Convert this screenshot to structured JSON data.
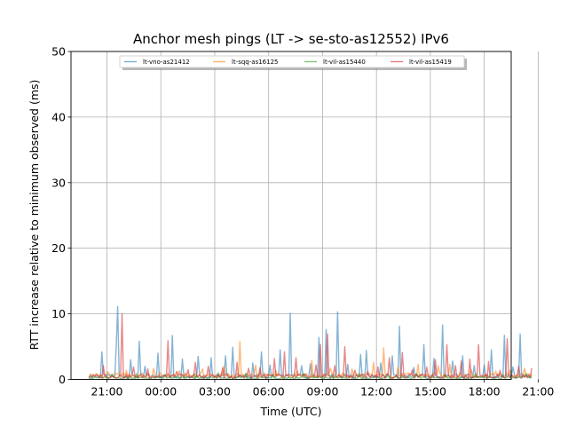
{
  "chart_data": {
    "type": "line",
    "title": "Anchor mesh pings (LT -> se-sto-as12552) IPv6",
    "xlabel": "Time (UTC)",
    "ylabel": "RTT increase relative to minimum observed (ms)",
    "xlim_hours": [
      -2.0,
      22.5
    ],
    "ylim": [
      0,
      50
    ],
    "x_ticks": [
      {
        "value": 21,
        "label": "21:00"
      },
      {
        "value": 24,
        "label": "00:00"
      },
      {
        "value": 27,
        "label": "03:00"
      },
      {
        "value": 30,
        "label": "06:00"
      },
      {
        "value": 33,
        "label": "09:00"
      },
      {
        "value": 36,
        "label": "12:00"
      },
      {
        "value": 39,
        "label": "15:00"
      },
      {
        "value": 42,
        "label": "18:00"
      },
      {
        "value": 45,
        "label": "21:00"
      }
    ],
    "y_ticks": [
      0,
      10,
      20,
      30,
      40,
      50
    ],
    "grid": true,
    "legend_position": "top-center",
    "series": [
      {
        "name": "lt-vno-as21412",
        "color": "#1f77b4",
        "peaks": [
          [
            20.7,
            4.2
          ],
          [
            21.5,
            5.2
          ],
          [
            21.6,
            11.1
          ],
          [
            22.3,
            3.0
          ],
          [
            22.8,
            5.8
          ],
          [
            23.1,
            2.0
          ],
          [
            23.8,
            4.0
          ],
          [
            24.6,
            6.7
          ],
          [
            25.2,
            3.1
          ],
          [
            26.1,
            3.5
          ],
          [
            26.8,
            3.3
          ],
          [
            27.6,
            3.6
          ],
          [
            28.0,
            4.9
          ],
          [
            29.1,
            2.5
          ],
          [
            29.6,
            4.2
          ],
          [
            30.1,
            2.2
          ],
          [
            30.6,
            4.5
          ],
          [
            31.2,
            10.1
          ],
          [
            31.8,
            2.1
          ],
          [
            32.3,
            2.4
          ],
          [
            32.8,
            6.4
          ],
          [
            33.2,
            7.6
          ],
          [
            33.8,
            10.3
          ],
          [
            34.4,
            2.3
          ],
          [
            35.1,
            3.8
          ],
          [
            35.4,
            4.4
          ],
          [
            36.2,
            2.5
          ],
          [
            36.9,
            3.6
          ],
          [
            37.3,
            8.1
          ],
          [
            38.1,
            1.8
          ],
          [
            38.6,
            5.3
          ],
          [
            39.2,
            3.2
          ],
          [
            39.7,
            8.3
          ],
          [
            40.2,
            2.8
          ],
          [
            40.8,
            3.6
          ],
          [
            41.4,
            2.1
          ],
          [
            42.0,
            2.2
          ],
          [
            42.4,
            4.5
          ],
          [
            43.1,
            6.7
          ],
          [
            43.6,
            1.9
          ],
          [
            44.0,
            6.9
          ]
        ],
        "baseline": 0.4
      },
      {
        "name": "lt-sqq-as16125",
        "color": "#ff7f0e",
        "peaks": [
          [
            21.0,
            1.2
          ],
          [
            22.1,
            1.4
          ],
          [
            23.6,
            1.7
          ],
          [
            25.0,
            1.3
          ],
          [
            26.3,
            1.6
          ],
          [
            27.5,
            2.0
          ],
          [
            28.4,
            5.8
          ],
          [
            29.3,
            2.2
          ],
          [
            30.4,
            1.4
          ],
          [
            31.6,
            1.3
          ],
          [
            32.4,
            2.9
          ],
          [
            33.4,
            1.7
          ],
          [
            34.6,
            1.6
          ],
          [
            35.8,
            2.6
          ],
          [
            36.4,
            4.8
          ],
          [
            37.2,
            1.9
          ],
          [
            38.3,
            2.3
          ],
          [
            39.4,
            2.1
          ],
          [
            40.1,
            2.3
          ],
          [
            41.3,
            1.5
          ],
          [
            42.6,
            1.3
          ],
          [
            43.4,
            1.4
          ],
          [
            44.2,
            1.7
          ]
        ],
        "baseline": 0.5
      },
      {
        "name": "lt-vil-as15440",
        "color": "#2ca02c",
        "peaks": [
          [
            21.3,
            0.8
          ],
          [
            22.6,
            0.9
          ],
          [
            24.2,
            0.8
          ],
          [
            25.8,
            0.9
          ],
          [
            27.2,
            1.0
          ],
          [
            28.7,
            0.9
          ],
          [
            30.2,
            0.8
          ],
          [
            31.9,
            0.9
          ],
          [
            33.5,
            0.8
          ],
          [
            35.0,
            0.9
          ],
          [
            36.6,
            0.8
          ],
          [
            38.2,
            0.9
          ],
          [
            39.8,
            0.8
          ],
          [
            41.5,
            0.9
          ],
          [
            43.0,
            0.8
          ],
          [
            44.3,
            0.9
          ]
        ],
        "baseline": 0.2
      },
      {
        "name": "lt-vil-as15419",
        "color": "#d62728",
        "peaks": [
          [
            20.8,
            2.1
          ],
          [
            21.8,
            10.0
          ],
          [
            22.5,
            1.9
          ],
          [
            23.3,
            1.6
          ],
          [
            24.4,
            5.9
          ],
          [
            24.9,
            1.2
          ],
          [
            25.5,
            1.5
          ],
          [
            25.9,
            2.6
          ],
          [
            26.6,
            2.0
          ],
          [
            27.4,
            1.8
          ],
          [
            28.2,
            2.6
          ],
          [
            28.9,
            1.7
          ],
          [
            29.5,
            1.8
          ],
          [
            30.3,
            3.2
          ],
          [
            30.9,
            4.2
          ],
          [
            31.5,
            3.3
          ],
          [
            32.6,
            2.2
          ],
          [
            32.9,
            5.3
          ],
          [
            33.3,
            6.9
          ],
          [
            33.7,
            2.1
          ],
          [
            34.2,
            5.0
          ],
          [
            34.8,
            1.4
          ],
          [
            35.5,
            1.2
          ],
          [
            36.1,
            1.9
          ],
          [
            36.7,
            3.3
          ],
          [
            37.4,
            4.1
          ],
          [
            38.0,
            1.5
          ],
          [
            38.8,
            1.9
          ],
          [
            39.3,
            3.0
          ],
          [
            39.9,
            5.3
          ],
          [
            40.4,
            2.1
          ],
          [
            40.7,
            2.8
          ],
          [
            41.2,
            3.1
          ],
          [
            41.7,
            5.3
          ],
          [
            42.2,
            2.7
          ],
          [
            42.9,
            1.4
          ],
          [
            43.3,
            6.2
          ],
          [
            43.9,
            2.0
          ],
          [
            44.6,
            1.7
          ]
        ],
        "baseline": 0.4
      }
    ]
  }
}
